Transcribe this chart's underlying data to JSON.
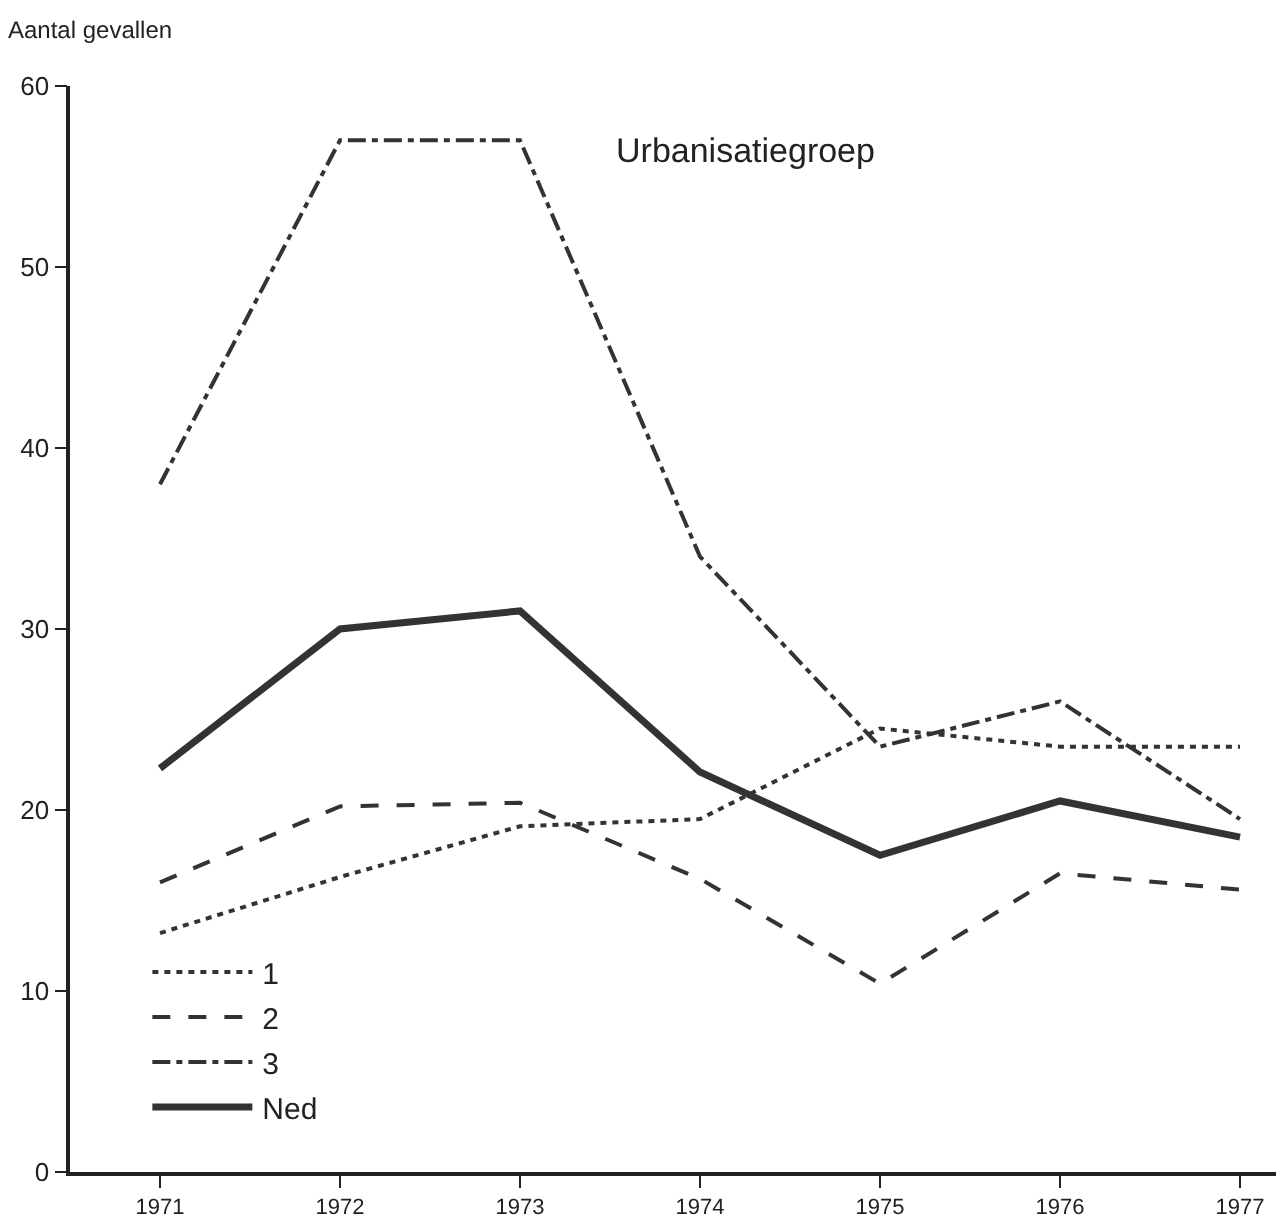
{
  "chart_data": {
    "type": "line",
    "ylabel": "Aantal gevallen",
    "legend_title": "Urbanisatiegroep",
    "x": [
      1971,
      1972,
      1973,
      1974,
      1975,
      1976,
      1977
    ],
    "xlim": [
      1970.5,
      1977.2
    ],
    "xticks": [
      1971,
      1972,
      1973,
      1974,
      1975,
      1976,
      1977
    ],
    "ylim": [
      0,
      60
    ],
    "yticks": [
      0,
      10,
      20,
      30,
      40,
      50,
      60
    ],
    "grid": false,
    "legend": "bottom left",
    "marker": "none",
    "series": [
      {
        "name": "1",
        "color": "#333333",
        "line_style": "dotted",
        "values": [
          13.2,
          16.3,
          19.1,
          19.5,
          24.5,
          23.5,
          23.5
        ]
      },
      {
        "name": "2",
        "color": "#333333",
        "line_style": "dashed",
        "values": [
          16,
          20.2,
          20.4,
          16.2,
          10.4,
          16.5,
          15.6
        ]
      },
      {
        "name": "3",
        "color": "#333333",
        "line_style": "dashdot",
        "values": [
          38,
          57,
          57,
          34,
          23.5,
          26,
          19.5
        ]
      },
      {
        "name": "Ned",
        "color": "#333333",
        "line_style": "solid",
        "values": [
          22.3,
          30,
          31,
          22.1,
          17.5,
          20.5,
          18.5
        ]
      }
    ]
  }
}
